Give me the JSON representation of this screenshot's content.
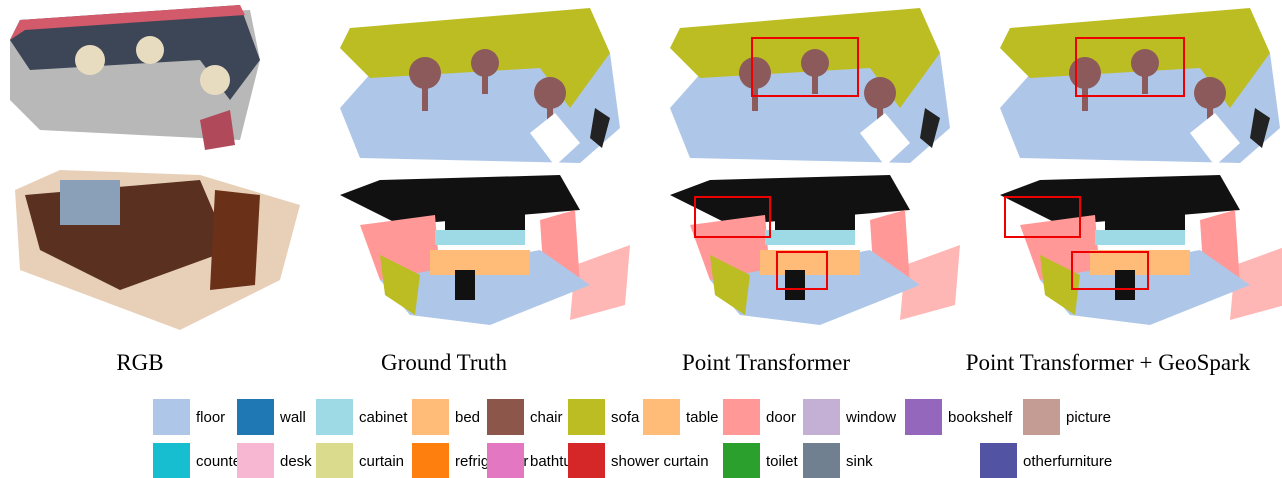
{
  "columns": [
    "RGB",
    "Ground Truth",
    "Point Transformer",
    "Point Transformer + GeoSpark"
  ],
  "legend": [
    [
      {
        "label": "floor",
        "color": "#aec7e8"
      },
      {
        "label": "wall",
        "color": "#1f77b4"
      },
      {
        "label": "cabinet",
        "color": "#9edae5"
      },
      {
        "label": "bed",
        "color": "#ffbb78"
      },
      {
        "label": "chair",
        "color": "#8c564b"
      },
      {
        "label": "sofa",
        "color": "#bcbd22"
      },
      {
        "label": "table",
        "color": "#ffbb78"
      },
      {
        "label": "door",
        "color": "#ff9896"
      },
      {
        "label": "window",
        "color": "#c5b0d5"
      },
      {
        "label": "bookshelf",
        "color": "#9467bd"
      },
      {
        "label": "picture",
        "color": "#c49c94"
      }
    ],
    [
      {
        "label": "counter",
        "color": "#17becf"
      },
      {
        "label": "desk",
        "color": "#f7b6d2"
      },
      {
        "label": "curtain",
        "color": "#dbdb8d"
      },
      {
        "label": "refrigerator",
        "color": "#ff7f0e"
      },
      {
        "label": "bathtub",
        "color": "#e377c2"
      },
      {
        "label": "shower curtain",
        "color": "#d62728"
      },
      {
        "label": "toilet",
        "color": "#2ca02c"
      },
      {
        "label": "sink",
        "color": "#708090"
      },
      {
        "label": "otherfurniture",
        "color": "#5254a3"
      }
    ]
  ]
}
